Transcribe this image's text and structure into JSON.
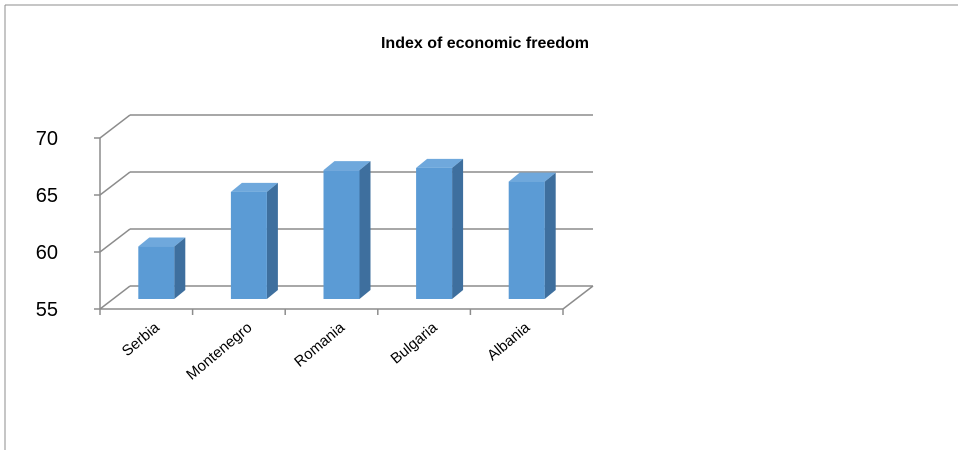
{
  "chart_data": {
    "type": "bar",
    "title": "Index of economic freedom",
    "xlabel": "",
    "ylabel": "",
    "categories": [
      "Serbia",
      "Montenegro",
      "Romania",
      "Bulgaria",
      "Albania"
    ],
    "values": [
      59.6,
      64.4,
      66.3,
      66.5,
      65.3
    ],
    "ylim": [
      55,
      70
    ],
    "yticks": [
      "55",
      "60",
      "65",
      "70"
    ],
    "grid": true,
    "legend": "none",
    "style": "3d-column",
    "colors": {
      "bar_front": "#5B9BD5",
      "bar_top": "#6FA8DC",
      "bar_side": "#3E6F9E",
      "grid": "#8C8C8C",
      "text": "#000000"
    }
  }
}
